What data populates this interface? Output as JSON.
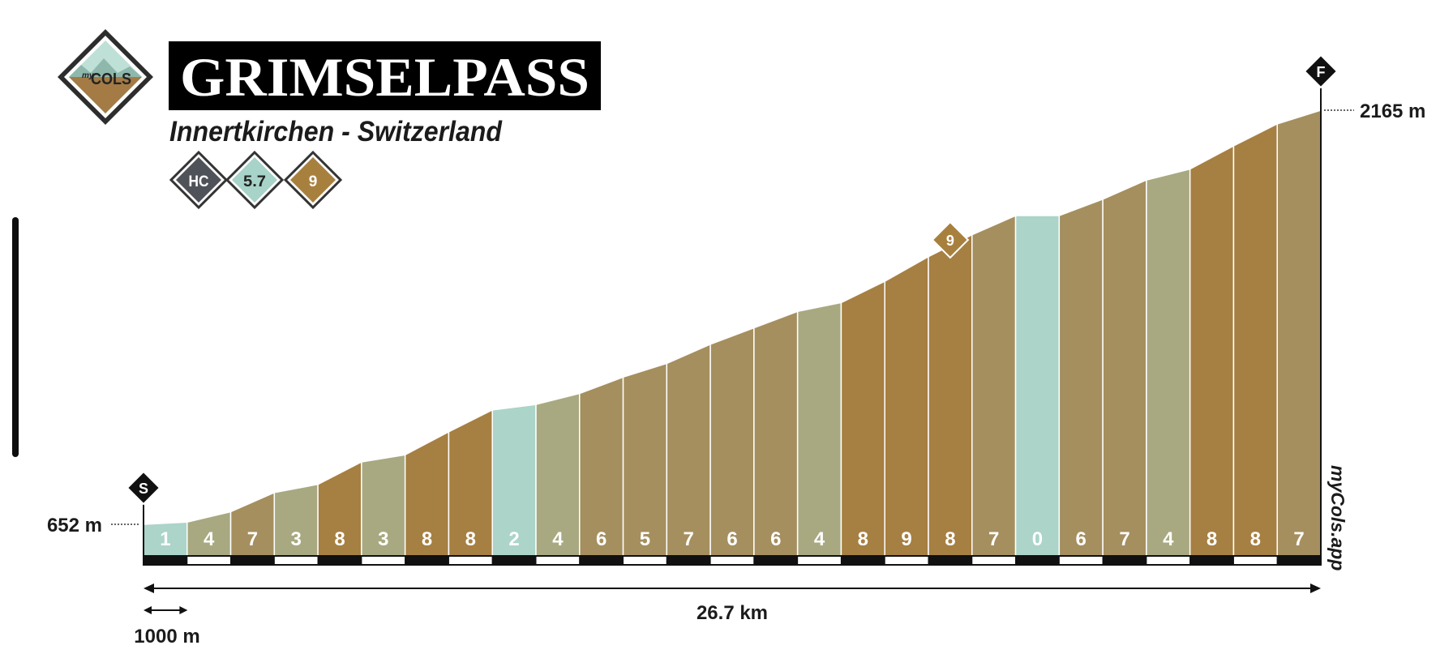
{
  "header": {
    "logo_top": "my",
    "logo_main": "COLS",
    "title": "GRIMSELPASS",
    "subtitle": "Innertkirchen - Switzerland",
    "badges": [
      {
        "label": "HC",
        "color": "#4f5359"
      },
      {
        "label": "5.7",
        "color": "#a8d3c8"
      },
      {
        "label": "9",
        "color": "#a8803e"
      }
    ]
  },
  "watermark": "myCols.app",
  "colors": {
    "grade_0": "#acd4c9",
    "grade_low": "#a8a981",
    "grade_mid": "#a58f5f",
    "grade_high": "#a67f42"
  },
  "chart_data": {
    "type": "area",
    "xlabel": "",
    "ylabel": "",
    "distance_label": "26.7 km",
    "scale_label": "1000 m",
    "total_km": 26.7,
    "start_marker": "S",
    "finish_marker": "F",
    "max_grade_marker": "9",
    "start_elevation_label": "652 m",
    "finish_elevation_label": "2165 m",
    "start_elevation": 652,
    "finish_elevation": 2165,
    "max_grade_segment": 18,
    "grades": [
      1,
      4,
      7,
      3,
      8,
      3,
      8,
      8,
      2,
      4,
      6,
      5,
      7,
      6,
      6,
      4,
      8,
      9,
      8,
      7,
      0,
      6,
      7,
      4,
      8,
      8,
      7
    ],
    "elevations": [
      652,
      660,
      698,
      768,
      798,
      880,
      906,
      990,
      1070,
      1090,
      1130,
      1190,
      1240,
      1310,
      1370,
      1430,
      1462,
      1540,
      1630,
      1710,
      1780,
      1780,
      1840,
      1910,
      1950,
      2035,
      2115,
      2165
    ]
  }
}
